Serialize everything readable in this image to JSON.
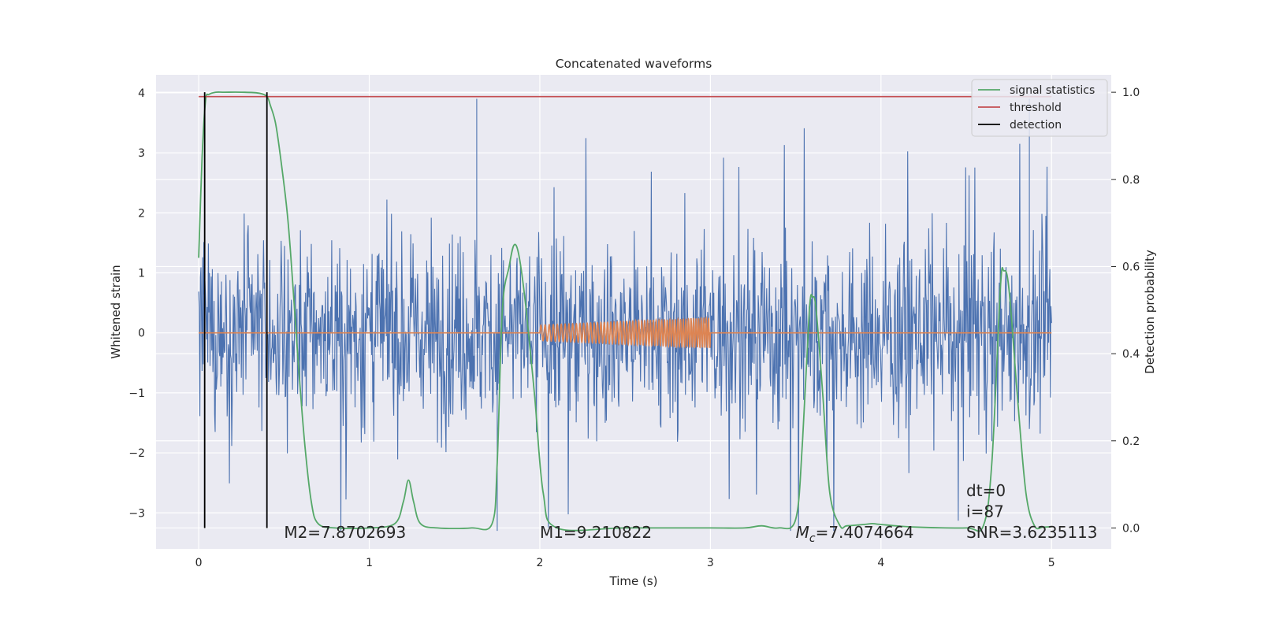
{
  "chart_data": {
    "type": "line",
    "title": "Concatenated waveforms",
    "xlabel": "Time (s)",
    "ylabel": "Whitened strain",
    "ylabel_right": "Detection probability",
    "xlim": [
      -0.25,
      5.35
    ],
    "ylim": [
      -3.6,
      4.3
    ],
    "ylim_right": [
      -0.048,
      1.04
    ],
    "xticks": [
      0,
      1,
      2,
      3,
      4,
      5
    ],
    "yticks": [
      -3,
      -2,
      -1,
      0,
      1,
      2,
      3,
      4
    ],
    "yticks_right": [
      0.0,
      0.2,
      0.4,
      0.6,
      0.8,
      1.0
    ],
    "grid": true,
    "legend_position": "top-right",
    "legend": [
      {
        "label": "signal statistics",
        "color": "#55a868"
      },
      {
        "label": "threshold",
        "color": "#c44e52"
      },
      {
        "label": "detection",
        "color": "#000000"
      }
    ],
    "series": [
      {
        "description": "whitened strain noise",
        "axis": "left",
        "color": "#4c72b0",
        "x_range": [
          0,
          5
        ],
        "typical_range": [
          -2.0,
          2.2
        ],
        "peak_max": 3.9,
        "peak_min": -3.3
      },
      {
        "description": "injected waveform",
        "axis": "left",
        "color": "#dd8452",
        "x_range": [
          0,
          5
        ],
        "chirp_window": [
          2.0,
          3.0
        ],
        "chirp_amplitude": [
          0.13,
          0.25
        ]
      },
      {
        "name": "signal statistics",
        "axis": "right",
        "color": "#55a868",
        "x": [
          0.0,
          0.02,
          0.04,
          0.06,
          0.1,
          0.15,
          0.25,
          0.35,
          0.4,
          0.42,
          0.45,
          0.48,
          0.52,
          0.55,
          0.58,
          0.62,
          0.66,
          0.7,
          0.8,
          1.0,
          1.15,
          1.2,
          1.23,
          1.26,
          1.3,
          1.4,
          1.6,
          1.72,
          1.75,
          1.78,
          1.82,
          1.85,
          1.88,
          1.92,
          1.97,
          2.02,
          2.1,
          2.5,
          3.0,
          3.2,
          3.3,
          3.4,
          3.5,
          3.54,
          3.58,
          3.6,
          3.62,
          3.66,
          3.7,
          3.76,
          3.8,
          3.9,
          3.95,
          4.0,
          4.2,
          4.5,
          4.6,
          4.65,
          4.7,
          4.72,
          4.75,
          4.8,
          4.85,
          4.9,
          4.95,
          5.0
        ],
        "y": [
          0.62,
          0.85,
          0.98,
          0.995,
          1.0,
          1.0,
          1.0,
          0.998,
          0.99,
          0.97,
          0.93,
          0.85,
          0.72,
          0.57,
          0.4,
          0.2,
          0.06,
          0.01,
          0.0,
          0.0,
          0.01,
          0.06,
          0.11,
          0.06,
          0.01,
          0.0,
          0.0,
          0.01,
          0.15,
          0.5,
          0.6,
          0.65,
          0.62,
          0.5,
          0.3,
          0.08,
          0.0,
          0.0,
          0.0,
          0.0,
          0.005,
          0.0,
          0.02,
          0.2,
          0.5,
          0.53,
          0.5,
          0.3,
          0.08,
          0.005,
          0.005,
          0.008,
          0.01,
          0.008,
          0.002,
          0.0,
          0.005,
          0.15,
          0.55,
          0.59,
          0.55,
          0.3,
          0.08,
          0.005,
          0.002,
          0.003
        ]
      },
      {
        "name": "threshold",
        "axis": "right",
        "color": "#c44e52",
        "x": [
          0.0,
          5.0
        ],
        "y": [
          0.99,
          0.99
        ]
      },
      {
        "name": "detection",
        "axis": "right",
        "color": "#000000",
        "x": [
          0.035,
          0.4
        ],
        "y_span": [
          0.0,
          1.0
        ]
      }
    ],
    "annotations": [
      {
        "text": "M2=7.8702693",
        "x": 0.5,
        "y": -3.3
      },
      {
        "text": "M1=9.210822",
        "x": 2.0,
        "y": -3.3
      },
      {
        "text_prefix": "M",
        "text_sub": "c",
        "text_suffix": "=7.4074664",
        "x": 3.5,
        "y": -3.3
      },
      {
        "text": "SNR=3.6235113",
        "x": 4.5,
        "y": -3.3
      },
      {
        "text": "i=87",
        "x": 4.5,
        "y": -2.95
      },
      {
        "text": "dt=0",
        "x": 4.5,
        "y": -2.6
      }
    ]
  }
}
